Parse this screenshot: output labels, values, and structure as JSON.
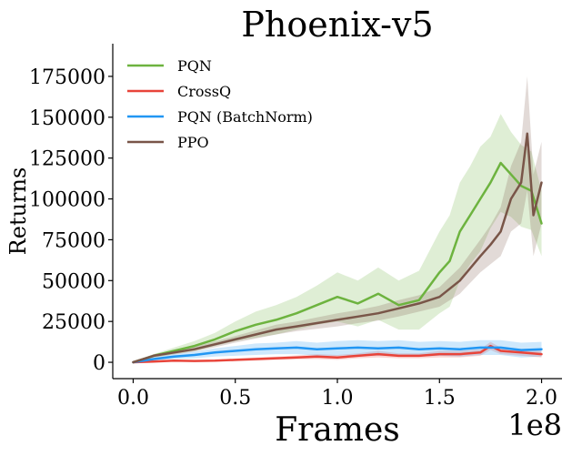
{
  "chart_data": {
    "type": "line",
    "title": "Phoenix-v5",
    "xlabel": "Frames",
    "ylabel": "Returns",
    "x_offset_label": "1e8",
    "xlim": [
      -0.1,
      2.1
    ],
    "ylim": [
      -10000,
      195000
    ],
    "xticks": [
      0.0,
      0.5,
      1.0,
      1.5,
      2.0
    ],
    "xtick_labels": [
      "0.0",
      "0.5",
      "1.0",
      "1.5",
      "2.0"
    ],
    "yticks": [
      0,
      25000,
      50000,
      75000,
      100000,
      125000,
      150000,
      175000
    ],
    "ytick_labels": [
      "0",
      "25000",
      "50000",
      "75000",
      "100000",
      "125000",
      "150000",
      "175000"
    ],
    "legend_position": "top-left",
    "series": [
      {
        "name": "PQN",
        "color": "#6db33f",
        "x": [
          0.0,
          0.1,
          0.2,
          0.3,
          0.4,
          0.5,
          0.6,
          0.7,
          0.8,
          0.9,
          1.0,
          1.1,
          1.2,
          1.3,
          1.4,
          1.5,
          1.55,
          1.6,
          1.65,
          1.7,
          1.75,
          1.8,
          1.85,
          1.9,
          1.95,
          2.0
        ],
        "y": [
          0,
          4000,
          7000,
          10000,
          14000,
          19000,
          23000,
          26000,
          30000,
          35000,
          40000,
          36000,
          42000,
          35000,
          38000,
          55000,
          62000,
          80000,
          90000,
          100000,
          110000,
          122000,
          115000,
          108000,
          105000,
          85000
        ],
        "band": [
          500,
          1000,
          2000,
          3000,
          4000,
          6000,
          8000,
          9000,
          10000,
          12000,
          15000,
          14000,
          16000,
          15000,
          18000,
          25000,
          28000,
          30000,
          30000,
          32000,
          28000,
          30000,
          26000,
          25000,
          24000,
          20000
        ]
      },
      {
        "name": "CrossQ",
        "color": "#e8443a",
        "x": [
          0.0,
          0.1,
          0.2,
          0.3,
          0.4,
          0.5,
          0.6,
          0.7,
          0.8,
          0.9,
          1.0,
          1.1,
          1.2,
          1.3,
          1.4,
          1.5,
          1.6,
          1.7,
          1.75,
          1.8,
          1.9,
          2.0
        ],
        "y": [
          0,
          500,
          1000,
          800,
          1000,
          1500,
          2000,
          2500,
          3000,
          3500,
          3000,
          4000,
          5000,
          4000,
          4000,
          5000,
          5000,
          6000,
          10000,
          7000,
          6000,
          5000
        ],
        "band": [
          200,
          300,
          500,
          500,
          500,
          800,
          1000,
          1000,
          1200,
          1500,
          1500,
          1500,
          2000,
          1500,
          1500,
          2000,
          2000,
          2000,
          2500,
          2000,
          2000,
          2000
        ]
      },
      {
        "name": "PQN (BatchNorm)",
        "color": "#2196f3",
        "x": [
          0.0,
          0.1,
          0.2,
          0.3,
          0.4,
          0.5,
          0.6,
          0.7,
          0.8,
          0.9,
          1.0,
          1.1,
          1.2,
          1.3,
          1.4,
          1.5,
          1.6,
          1.7,
          1.8,
          1.9,
          2.0
        ],
        "y": [
          0,
          2000,
          3500,
          4500,
          6000,
          7000,
          8000,
          8500,
          9000,
          8000,
          8500,
          9000,
          8500,
          9000,
          8000,
          8500,
          8000,
          9000,
          9000,
          7500,
          8000
        ],
        "band": [
          500,
          1000,
          1500,
          2000,
          2500,
          3000,
          3500,
          3500,
          4000,
          4000,
          4500,
          4500,
          4500,
          4500,
          4500,
          4500,
          4500,
          4500,
          4500,
          4500,
          4500
        ]
      },
      {
        "name": "PPO",
        "color": "#795548",
        "x": [
          0.0,
          0.1,
          0.2,
          0.3,
          0.4,
          0.5,
          0.6,
          0.7,
          0.8,
          0.9,
          1.0,
          1.1,
          1.2,
          1.3,
          1.4,
          1.5,
          1.6,
          1.7,
          1.75,
          1.8,
          1.85,
          1.9,
          1.93,
          1.96,
          2.0
        ],
        "y": [
          0,
          4000,
          6000,
          8000,
          11000,
          14000,
          17000,
          20000,
          22000,
          24000,
          26000,
          28000,
          30000,
          33000,
          36000,
          40000,
          50000,
          65000,
          72000,
          80000,
          100000,
          110000,
          140000,
          90000,
          110000
        ],
        "band": [
          500,
          1000,
          1200,
          1500,
          1800,
          2000,
          2500,
          3000,
          3000,
          3500,
          4000,
          4000,
          4500,
          5000,
          5000,
          6000,
          8000,
          10000,
          12000,
          15000,
          20000,
          25000,
          35000,
          25000,
          25000
        ]
      }
    ]
  }
}
